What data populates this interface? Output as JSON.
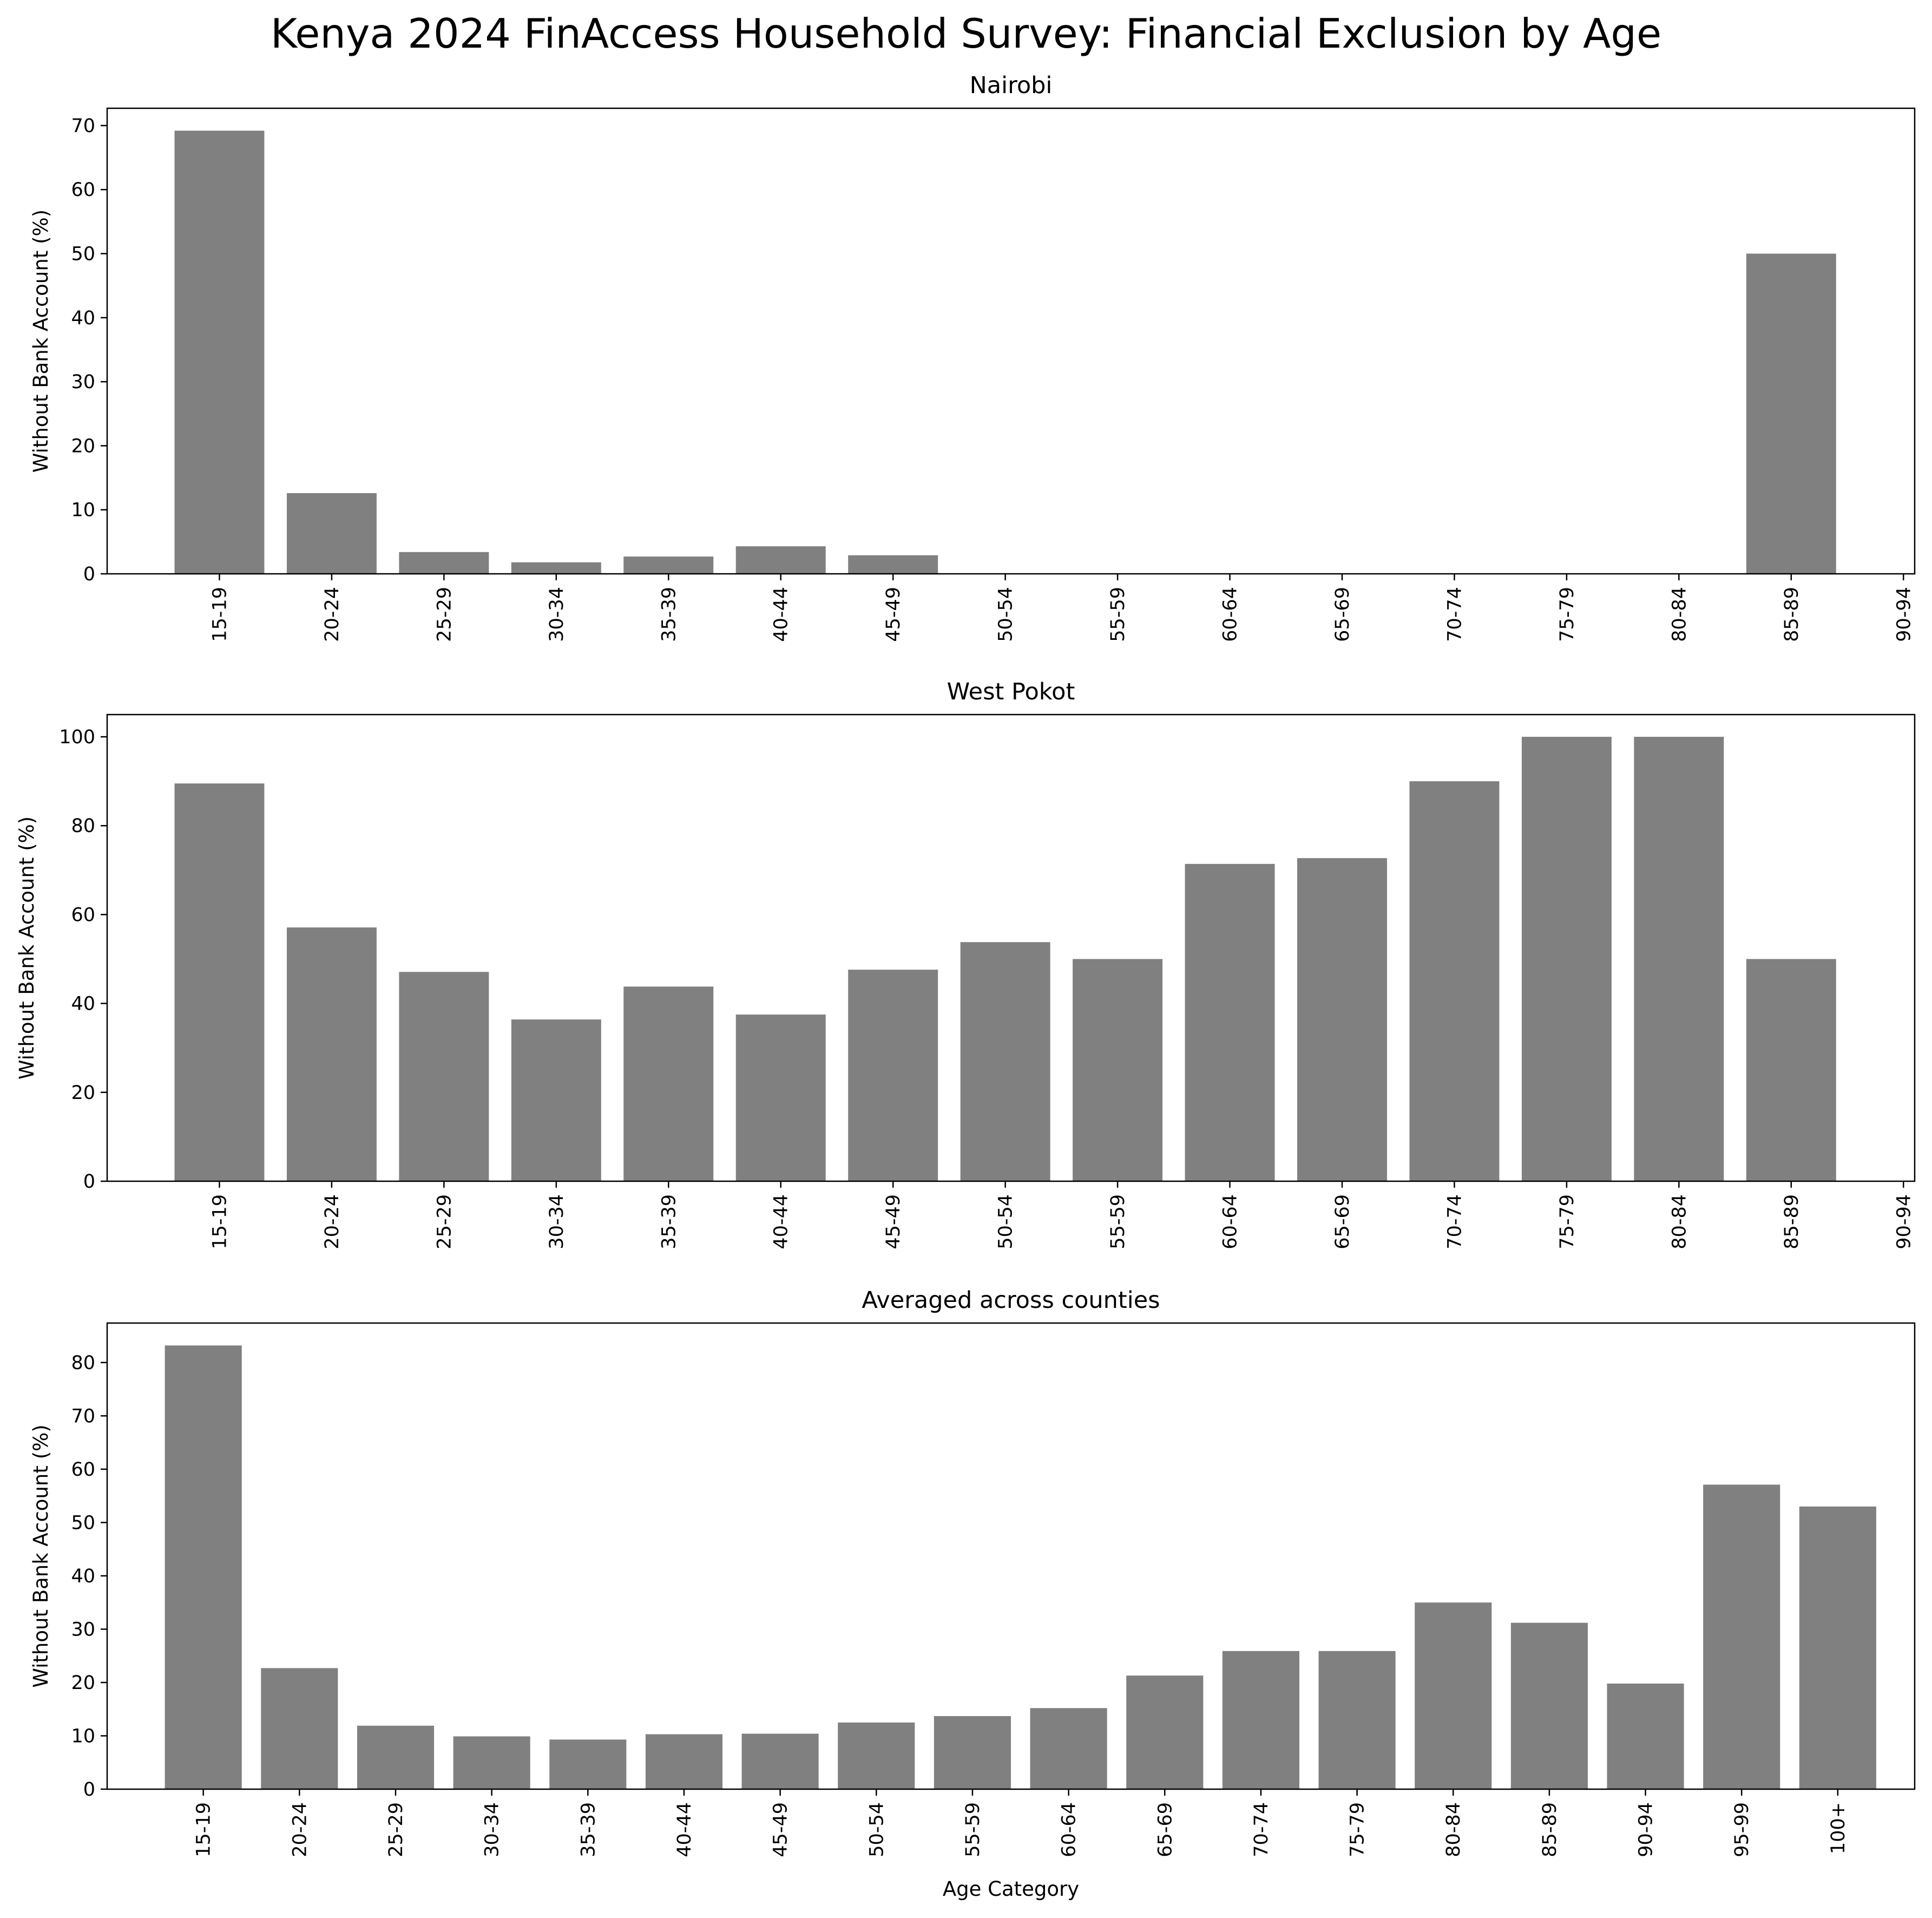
{
  "figure": {
    "suptitle": "Kenya 2024 FinAccess Household Survey: Financial Exclusion by Age"
  },
  "colors": {
    "bar": "#808080"
  },
  "chart_data": [
    {
      "type": "bar",
      "title": "Nairobi",
      "xlabel": "",
      "ylabel": "Without Bank Account (%)",
      "ylim": [
        0,
        72.7
      ],
      "yticks": [
        0,
        10,
        20,
        30,
        40,
        50,
        60,
        70
      ],
      "categories": [
        "15-19",
        "20-24",
        "25-29",
        "30-34",
        "35-39",
        "40-44",
        "45-49",
        "50-54",
        "55-59",
        "60-64",
        "65-69",
        "70-74",
        "75-79",
        "80-84",
        "85-89",
        "90-94"
      ],
      "values": [
        69.2,
        12.6,
        3.4,
        1.8,
        2.7,
        4.3,
        2.9,
        0,
        0,
        0,
        0,
        0,
        0,
        0,
        50.0,
        0
      ]
    },
    {
      "type": "bar",
      "title": "West Pokot",
      "xlabel": "",
      "ylabel": "Without Bank Account (%)",
      "ylim": [
        0,
        105
      ],
      "yticks": [
        0,
        20,
        40,
        60,
        80,
        100
      ],
      "categories": [
        "15-19",
        "20-24",
        "25-29",
        "30-34",
        "35-39",
        "40-44",
        "45-49",
        "50-54",
        "55-59",
        "60-64",
        "65-69",
        "70-74",
        "75-79",
        "80-84",
        "85-89",
        "90-94"
      ],
      "values": [
        89.5,
        57.1,
        47.1,
        36.4,
        43.8,
        37.5,
        47.6,
        53.8,
        50.0,
        71.4,
        72.7,
        90.0,
        100,
        100,
        50.0,
        0
      ]
    },
    {
      "type": "bar",
      "title": "Averaged across counties",
      "xlabel": "Age Category",
      "ylabel": "Without Bank Account (%)",
      "ylim": [
        0,
        87.4
      ],
      "yticks": [
        0,
        10,
        20,
        30,
        40,
        50,
        60,
        70,
        80
      ],
      "categories": [
        "15-19",
        "20-24",
        "25-29",
        "30-34",
        "35-39",
        "40-44",
        "45-49",
        "50-54",
        "55-59",
        "60-64",
        "65-69",
        "70-74",
        "75-79",
        "80-84",
        "85-89",
        "90-94",
        "95-99",
        "100+"
      ],
      "values": [
        83.2,
        22.7,
        11.9,
        9.9,
        9.3,
        10.3,
        10.4,
        12.5,
        13.7,
        15.2,
        21.3,
        25.9,
        25.9,
        35.0,
        31.2,
        19.8,
        57.1,
        53.0
      ]
    }
  ]
}
